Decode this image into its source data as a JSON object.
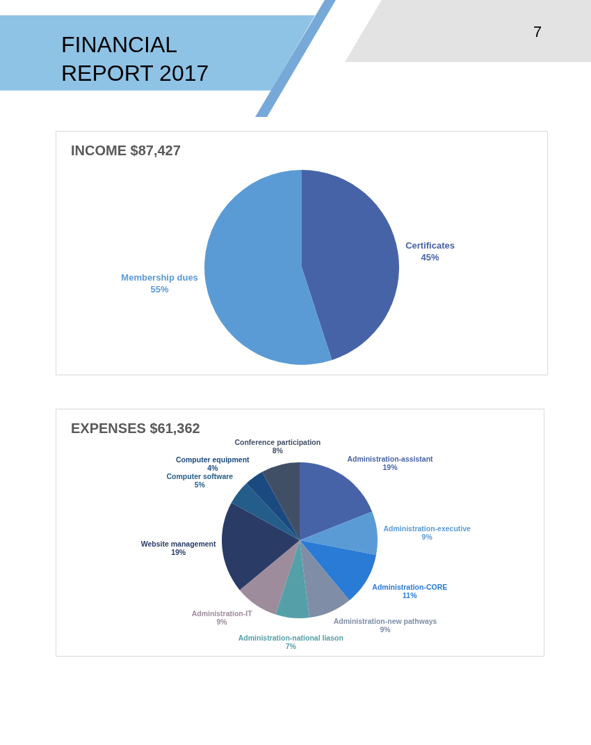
{
  "chart_data": [
    {
      "type": "pie",
      "title": "INCOME $87,427",
      "categories": [
        "Certificates",
        "Membership dues"
      ],
      "values": [
        45,
        55
      ],
      "value_labels": [
        "45%",
        "55%"
      ],
      "colors": [
        "#4763a8",
        "#5b9bd5"
      ],
      "annotations": [
        "FINANCIAL REPORT 2017",
        "7"
      ]
    },
    {
      "type": "pie",
      "title": "EXPENSES $61,362",
      "categories": [
        "Administration-assistant",
        "Administration-executive",
        "Administration-CORE",
        "Administration-new pathways",
        "Administration-national liason",
        "Administration-IT",
        "Website management",
        "Computer software",
        "Computer equipment",
        "Conference participation"
      ],
      "values": [
        19,
        9,
        11,
        9,
        7,
        9,
        19,
        5,
        4,
        8
      ],
      "value_labels": [
        "19%",
        "9%",
        "11%",
        "9%",
        "7%",
        "9%",
        "19%",
        "5%",
        "4%",
        "8%"
      ],
      "colors": [
        "#4763a8",
        "#5b9bd5",
        "#2a7bd5",
        "#7f8ea6",
        "#55a0a8",
        "#9d8c9c",
        "#2a3b66",
        "#255d8a",
        "#1b4a80",
        "#414f66"
      ]
    }
  ]
}
